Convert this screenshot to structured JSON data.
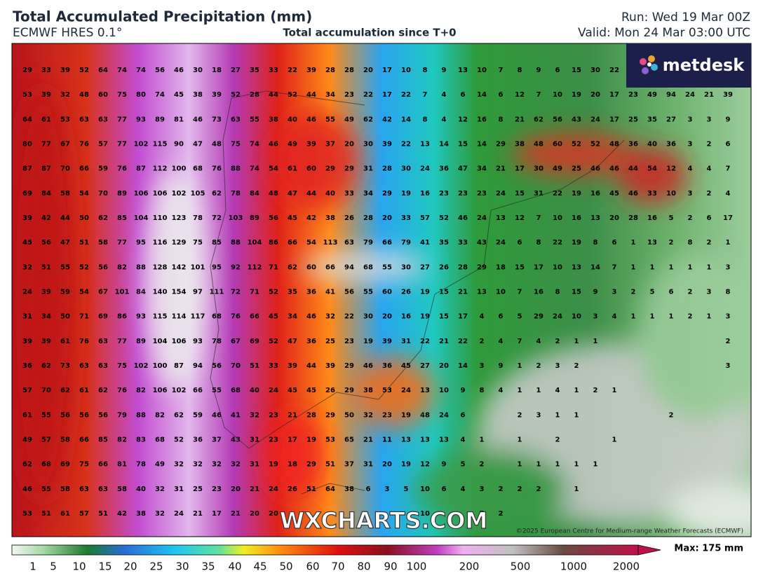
{
  "header": {
    "title": "Total Accumulated Precipitation (mm)",
    "subtitle": "ECMWF HRES 0.1°",
    "center_subtitle": "Total accumulation since T+0",
    "run": "Run: Wed 19 Mar 00Z",
    "valid": "Valid: Mon 24 Mar 03:00 UTC"
  },
  "logo": "metdesk",
  "watermark": "WXCHARTS.COM",
  "copyright": "©2025 European Centre for Medium-range Weather Forecasts (ECMWF)",
  "grid": [
    [
      29,
      33,
      39,
      52,
      64,
      74,
      74,
      56,
      46,
      30,
      18,
      27,
      35,
      33,
      22,
      39,
      28,
      28,
      20,
      17,
      10,
      8,
      9,
      13,
      10,
      7,
      8,
      9,
      6,
      15,
      30,
      22,
      null,
      null,
      null,
      null,
      null,
      null
    ],
    [
      53,
      39,
      32,
      48,
      60,
      75,
      80,
      74,
      45,
      38,
      39,
      52,
      28,
      44,
      52,
      44,
      34,
      23,
      22,
      17,
      22,
      7,
      4,
      6,
      14,
      6,
      12,
      7,
      10,
      19,
      20,
      17,
      23,
      49,
      94,
      24,
      21,
      39
    ],
    [
      64,
      61,
      53,
      63,
      63,
      77,
      93,
      89,
      81,
      46,
      73,
      63,
      55,
      38,
      40,
      46,
      55,
      49,
      62,
      42,
      14,
      8,
      4,
      12,
      16,
      8,
      21,
      62,
      56,
      43,
      24,
      17,
      25,
      35,
      27,
      3,
      3,
      9
    ],
    [
      80,
      77,
      67,
      76,
      57,
      77,
      102,
      115,
      90,
      47,
      48,
      75,
      74,
      46,
      49,
      39,
      37,
      20,
      30,
      39,
      22,
      13,
      14,
      15,
      14,
      29,
      38,
      48,
      60,
      52,
      52,
      48,
      36,
      40,
      36,
      3,
      2,
      6
    ],
    [
      87,
      87,
      70,
      66,
      59,
      76,
      87,
      112,
      100,
      68,
      76,
      88,
      74,
      54,
      61,
      60,
      29,
      29,
      31,
      28,
      30,
      24,
      36,
      47,
      34,
      21,
      17,
      30,
      49,
      25,
      46,
      46,
      44,
      54,
      12,
      4,
      4,
      7
    ],
    [
      69,
      84,
      58,
      54,
      70,
      89,
      106,
      106,
      102,
      105,
      62,
      78,
      84,
      48,
      47,
      44,
      40,
      33,
      34,
      29,
      19,
      16,
      23,
      23,
      23,
      24,
      15,
      31,
      22,
      19,
      16,
      45,
      46,
      33,
      10,
      3,
      2,
      4
    ],
    [
      39,
      42,
      44,
      50,
      62,
      85,
      104,
      110,
      123,
      78,
      72,
      103,
      89,
      56,
      45,
      42,
      38,
      26,
      28,
      20,
      33,
      57,
      52,
      46,
      24,
      13,
      12,
      7,
      10,
      16,
      13,
      20,
      28,
      16,
      5,
      2,
      6,
      17
    ],
    [
      45,
      56,
      47,
      51,
      58,
      77,
      95,
      116,
      129,
      75,
      85,
      88,
      104,
      86,
      66,
      54,
      113,
      63,
      79,
      66,
      79,
      41,
      35,
      33,
      43,
      24,
      6,
      8,
      22,
      19,
      8,
      6,
      1,
      13,
      2,
      8,
      2,
      1
    ],
    [
      32,
      51,
      55,
      52,
      56,
      82,
      88,
      128,
      142,
      101,
      95,
      92,
      112,
      71,
      62,
      60,
      66,
      94,
      68,
      55,
      30,
      27,
      26,
      28,
      29,
      18,
      15,
      17,
      10,
      13,
      14,
      7,
      1,
      1,
      1,
      1,
      1,
      3
    ],
    [
      24,
      39,
      59,
      54,
      67,
      101,
      84,
      140,
      154,
      97,
      111,
      72,
      71,
      52,
      35,
      36,
      41,
      56,
      55,
      60,
      26,
      19,
      15,
      21,
      13,
      10,
      7,
      16,
      8,
      15,
      9,
      3,
      2,
      5,
      6,
      2,
      3,
      8
    ],
    [
      31,
      34,
      50,
      71,
      69,
      86,
      93,
      115,
      114,
      117,
      68,
      76,
      66,
      45,
      34,
      46,
      32,
      22,
      30,
      20,
      16,
      19,
      15,
      17,
      4,
      6,
      5,
      29,
      24,
      10,
      3,
      4,
      1,
      1,
      1,
      2,
      1,
      3
    ],
    [
      39,
      39,
      61,
      76,
      63,
      77,
      89,
      104,
      106,
      93,
      78,
      67,
      69,
      52,
      47,
      36,
      25,
      23,
      19,
      39,
      31,
      22,
      21,
      22,
      2,
      4,
      7,
      4,
      2,
      1,
      1,
      null,
      null,
      null,
      null,
      null,
      null,
      2
    ],
    [
      36,
      62,
      73,
      63,
      63,
      75,
      102,
      100,
      87,
      94,
      56,
      70,
      51,
      33,
      39,
      44,
      39,
      29,
      46,
      36,
      45,
      27,
      20,
      14,
      3,
      9,
      1,
      2,
      3,
      2,
      null,
      null,
      null,
      null,
      null,
      null,
      null,
      3
    ],
    [
      57,
      70,
      62,
      61,
      62,
      76,
      82,
      106,
      102,
      66,
      55,
      68,
      40,
      24,
      45,
      45,
      26,
      29,
      38,
      53,
      24,
      13,
      10,
      9,
      8,
      4,
      1,
      1,
      4,
      1,
      2,
      1,
      null,
      null,
      null,
      null,
      null,
      null
    ],
    [
      61,
      55,
      56,
      56,
      56,
      79,
      88,
      82,
      62,
      59,
      46,
      41,
      32,
      23,
      21,
      28,
      29,
      50,
      32,
      23,
      19,
      48,
      24,
      6,
      null,
      null,
      2,
      3,
      1,
      1,
      null,
      null,
      null,
      null,
      2,
      null,
      null,
      null
    ],
    [
      49,
      57,
      58,
      66,
      85,
      82,
      83,
      68,
      52,
      36,
      37,
      43,
      31,
      23,
      17,
      19,
      53,
      65,
      21,
      11,
      13,
      13,
      13,
      4,
      1,
      null,
      1,
      null,
      2,
      null,
      null,
      1,
      null,
      null,
      null,
      null,
      null,
      null
    ],
    [
      62,
      68,
      69,
      75,
      66,
      81,
      78,
      49,
      32,
      32,
      32,
      32,
      31,
      19,
      18,
      29,
      51,
      37,
      31,
      20,
      19,
      12,
      9,
      5,
      2,
      null,
      1,
      1,
      1,
      1,
      1,
      null,
      null,
      null,
      null,
      null,
      null,
      null
    ],
    [
      46,
      55,
      58,
      63,
      63,
      58,
      40,
      32,
      31,
      25,
      23,
      20,
      21,
      24,
      26,
      51,
      64,
      38,
      6,
      3,
      5,
      10,
      6,
      4,
      3,
      2,
      2,
      2,
      null,
      1,
      null,
      null,
      null,
      null,
      null,
      null,
      null,
      null
    ],
    [
      53,
      51,
      61,
      57,
      51,
      42,
      38,
      32,
      24,
      21,
      17,
      21,
      20,
      20,
      null,
      null,
      null,
      null,
      null,
      null,
      null,
      10,
      null,
      null,
      5,
      2,
      null,
      null,
      null,
      null,
      null,
      null,
      null,
      null,
      null,
      null,
      null,
      null
    ]
  ],
  "colorbar": {
    "ticks": [
      1,
      5,
      10,
      15,
      20,
      25,
      30,
      35,
      40,
      45,
      50,
      60,
      70,
      80,
      90,
      100,
      200,
      500,
      1000,
      2000
    ],
    "max_label": "Max: 175 mm"
  }
}
